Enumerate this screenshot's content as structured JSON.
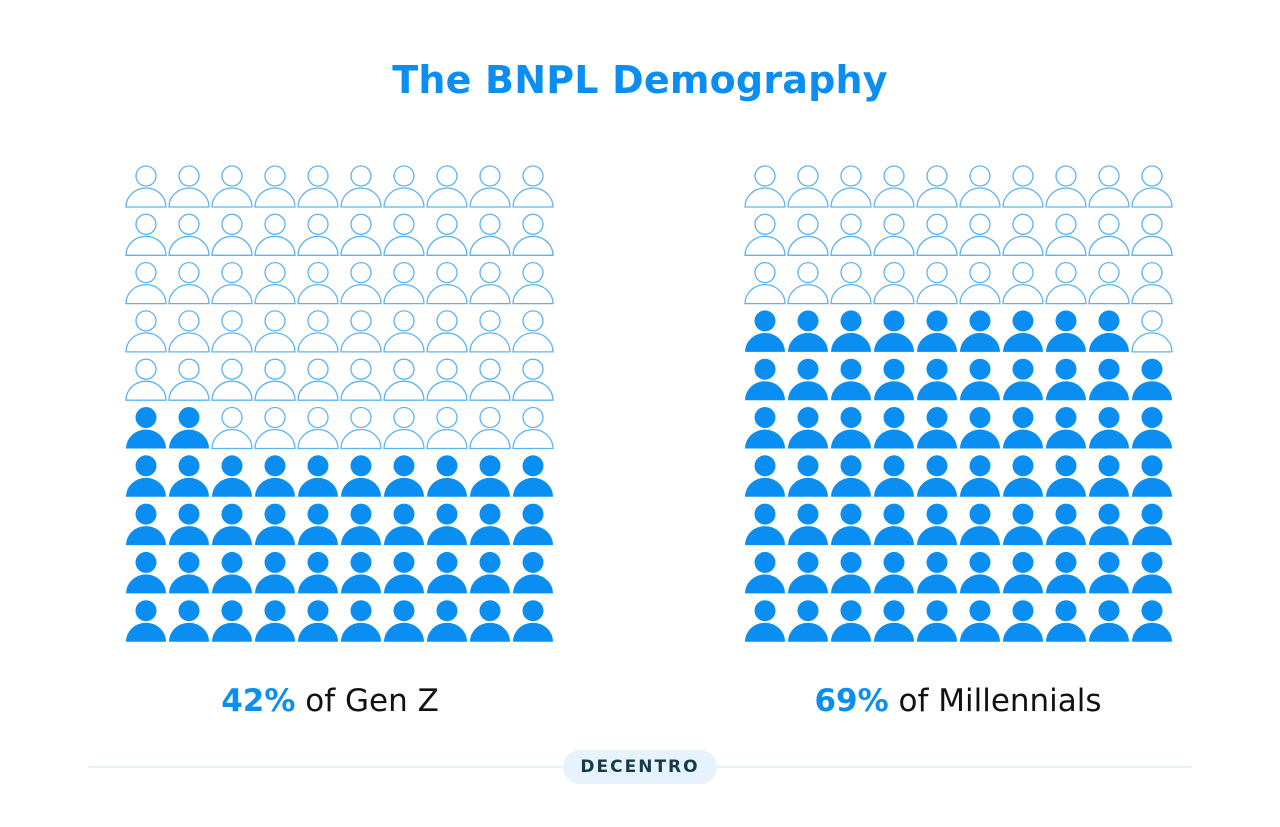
{
  "title": "The BNPL Demography",
  "colors": {
    "filled": "#0a8ef2",
    "outline": "#5cb3f2",
    "title": "#0a8ef2"
  },
  "chart_data": [
    {
      "type": "pictogram",
      "title": "Gen Z",
      "total": 100,
      "filled": 42,
      "rows": 10,
      "cols": 10,
      "fill_from": "bottom-left",
      "pct_label": "42%",
      "label": " of Gen Z"
    },
    {
      "type": "pictogram",
      "title": "Millennials",
      "total": 100,
      "filled": 69,
      "rows": 10,
      "cols": 10,
      "fill_from": "bottom-left",
      "pct_label": "69%",
      "label": " of Millennials"
    }
  ],
  "footer": {
    "logo": "DECENTRO"
  }
}
